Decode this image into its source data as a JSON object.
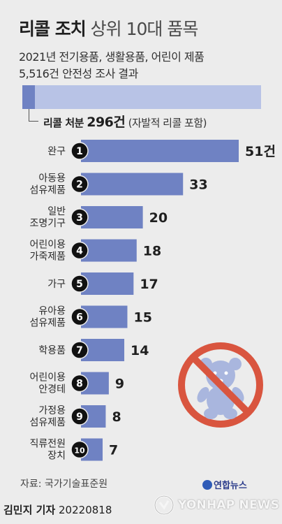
{
  "title_strong": "리콜 조치",
  "title_light": "상위 10대 품목",
  "subtitle_1": "2021년 전기용품, 생활용품, 어린이 제품",
  "subtitle_2": "5,516건 안전성 조사 결과",
  "total": {
    "label": "리콜 처분",
    "value": "296건",
    "note": "(자발적 리콜 포함)",
    "recall_count": 296,
    "survey_count": 5516
  },
  "source": "자료: 국가기술표준원",
  "byline_name": "김민지 기자",
  "byline_date": "20220818",
  "logo_text": "연합뉴스",
  "watermark": "YONHAP NEWS",
  "icon": "no-teddy-bear-icon",
  "colors": {
    "bar": "#6f82c3",
    "track": "#b8c3e6",
    "badge": "#111111",
    "prohibit": "#d9553f",
    "teddy": "#a9b6de"
  },
  "chart_data": {
    "type": "bar",
    "orientation": "horizontal",
    "unit": "건",
    "categories": [
      [
        "완구"
      ],
      [
        "아동용",
        "섬유제품"
      ],
      [
        "일반",
        "조명기구"
      ],
      [
        "어린이용",
        "가죽제품"
      ],
      [
        "가구"
      ],
      [
        "유아용",
        "섬유제품"
      ],
      [
        "학용품"
      ],
      [
        "어린이용",
        "안경테"
      ],
      [
        "가정용",
        "섬유제품"
      ],
      [
        "직류전원",
        "장치"
      ]
    ],
    "ranks": [
      "1",
      "2",
      "3",
      "4",
      "5",
      "6",
      "7",
      "8",
      "9",
      "10"
    ],
    "values": [
      51,
      33,
      20,
      18,
      17,
      15,
      14,
      9,
      8,
      7
    ],
    "value_labels": [
      "51건",
      "33",
      "20",
      "18",
      "17",
      "15",
      "14",
      "9",
      "8",
      "7"
    ]
  }
}
